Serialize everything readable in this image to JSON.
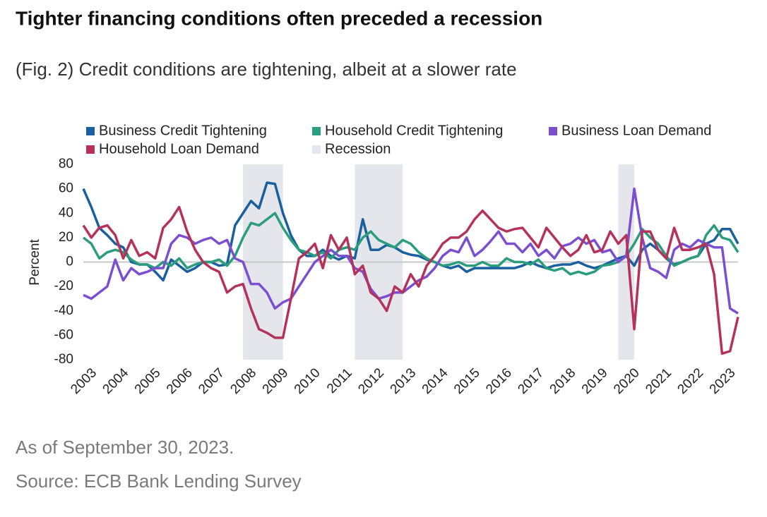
{
  "chart_data": {
    "type": "line",
    "title": "Tighter financing conditions often preceded a recession",
    "subtitle": "(Fig. 2) Credit conditions are tightening, albeit at a slower rate",
    "ylabel": "Percent",
    "notes": [
      "As of September 30, 2023.",
      "Source: ECB Bank Lending Survey"
    ],
    "categories": [
      "2003",
      null,
      null,
      null,
      "2004",
      null,
      null,
      null,
      "2005",
      null,
      null,
      null,
      "2006",
      null,
      null,
      null,
      "2007",
      null,
      null,
      null,
      "2008",
      null,
      null,
      null,
      "2009",
      null,
      null,
      null,
      "2010",
      null,
      null,
      null,
      "2011",
      null,
      null,
      null,
      "2012",
      null,
      null,
      null,
      "2013",
      null,
      null,
      null,
      "2014",
      null,
      null,
      null,
      "2015",
      null,
      null,
      null,
      "2016",
      null,
      null,
      null,
      "2017",
      null,
      null,
      null,
      "2018",
      null,
      null,
      null,
      "2019",
      null,
      null,
      null,
      "2020",
      null,
      null,
      null,
      "2021",
      null,
      null,
      null,
      "2022",
      null,
      null,
      null,
      "2023",
      null,
      null
    ],
    "ylim": [
      -80,
      80
    ],
    "yticks": [
      80,
      60,
      40,
      20,
      0,
      -20,
      -40,
      -60,
      -80
    ],
    "series": [
      {
        "name": "Business Credit Tightening",
        "color": "#1a5f9e",
        "values": [
          60,
          45,
          28,
          22,
          15,
          12,
          0,
          -2,
          -2,
          -8,
          -15,
          2,
          -3,
          -8,
          -5,
          0,
          0,
          -3,
          -2,
          30,
          40,
          50,
          44,
          65,
          64,
          40,
          22,
          10,
          5,
          5,
          10,
          5,
          2,
          5,
          3,
          35,
          10,
          10,
          14,
          12,
          8,
          6,
          5,
          2,
          0,
          -3,
          -5,
          -3,
          -8,
          -5,
          -5,
          -5,
          -5,
          -5,
          -5,
          -3,
          0,
          -3,
          -5,
          -3,
          -2,
          -2,
          0,
          -3,
          -5,
          -3,
          0,
          3,
          5,
          -3,
          10,
          15,
          10,
          3,
          -2,
          0,
          3,
          5,
          15,
          18,
          27,
          27,
          15
        ]
      },
      {
        "name": "Household Credit Tightening",
        "color": "#2a9d7c",
        "values": [
          20,
          15,
          3,
          8,
          10,
          8,
          2,
          -2,
          -2,
          -5,
          0,
          -3,
          3,
          -5,
          -2,
          0,
          0,
          2,
          -3,
          5,
          20,
          32,
          30,
          35,
          40,
          28,
          18,
          10,
          8,
          5,
          8,
          3,
          10,
          12,
          10,
          20,
          25,
          18,
          15,
          12,
          18,
          15,
          8,
          3,
          0,
          -3,
          -2,
          0,
          -3,
          -3,
          0,
          -3,
          -3,
          3,
          0,
          0,
          -2,
          2,
          -5,
          -7,
          -5,
          -10,
          -8,
          -10,
          -8,
          -3,
          -2,
          0,
          5,
          15,
          27,
          20,
          15,
          5,
          -3,
          0,
          3,
          5,
          22,
          30,
          20,
          18,
          8
        ]
      },
      {
        "name": "Business Loan Demand",
        "color": "#7b4fd0",
        "values": [
          -27,
          -30,
          -25,
          -20,
          2,
          -15,
          -5,
          -10,
          -8,
          -5,
          -5,
          15,
          22,
          20,
          15,
          18,
          20,
          15,
          18,
          3,
          0,
          -18,
          -18,
          -25,
          -38,
          -33,
          -30,
          -20,
          -10,
          0,
          5,
          10,
          5,
          5,
          -5,
          -8,
          -22,
          -30,
          -28,
          -25,
          -25,
          -20,
          -15,
          -12,
          -5,
          5,
          10,
          8,
          20,
          5,
          10,
          17,
          25,
          15,
          15,
          8,
          15,
          5,
          10,
          3,
          13,
          15,
          20,
          15,
          18,
          8,
          10,
          0,
          5,
          60,
          20,
          -5,
          -8,
          -13,
          10,
          15,
          12,
          18,
          15,
          12,
          12,
          -38,
          -42
        ]
      },
      {
        "name": "Household Loan Demand",
        "color": "#b5325a",
        "values": [
          30,
          20,
          28,
          30,
          22,
          3,
          18,
          5,
          8,
          3,
          28,
          35,
          45,
          25,
          10,
          0,
          -5,
          -8,
          -25,
          -20,
          -18,
          -38,
          -55,
          -58,
          -62,
          -62,
          -30,
          3,
          8,
          15,
          -5,
          22,
          10,
          20,
          -10,
          -3,
          -25,
          -30,
          -40,
          -20,
          -25,
          -10,
          -20,
          -3,
          5,
          15,
          20,
          20,
          25,
          35,
          42,
          35,
          28,
          25,
          27,
          28,
          20,
          12,
          28,
          20,
          12,
          5,
          10,
          22,
          8,
          10,
          25,
          15,
          22,
          -55,
          25,
          25,
          10,
          3,
          28,
          10,
          10,
          12,
          15,
          -10,
          -75,
          -73,
          -45
        ]
      }
    ],
    "recession": {
      "name": "Recession",
      "color": "#e4e6ec",
      "spans": [
        [
          20,
          25
        ],
        [
          34,
          40
        ],
        [
          67,
          69
        ]
      ]
    }
  }
}
